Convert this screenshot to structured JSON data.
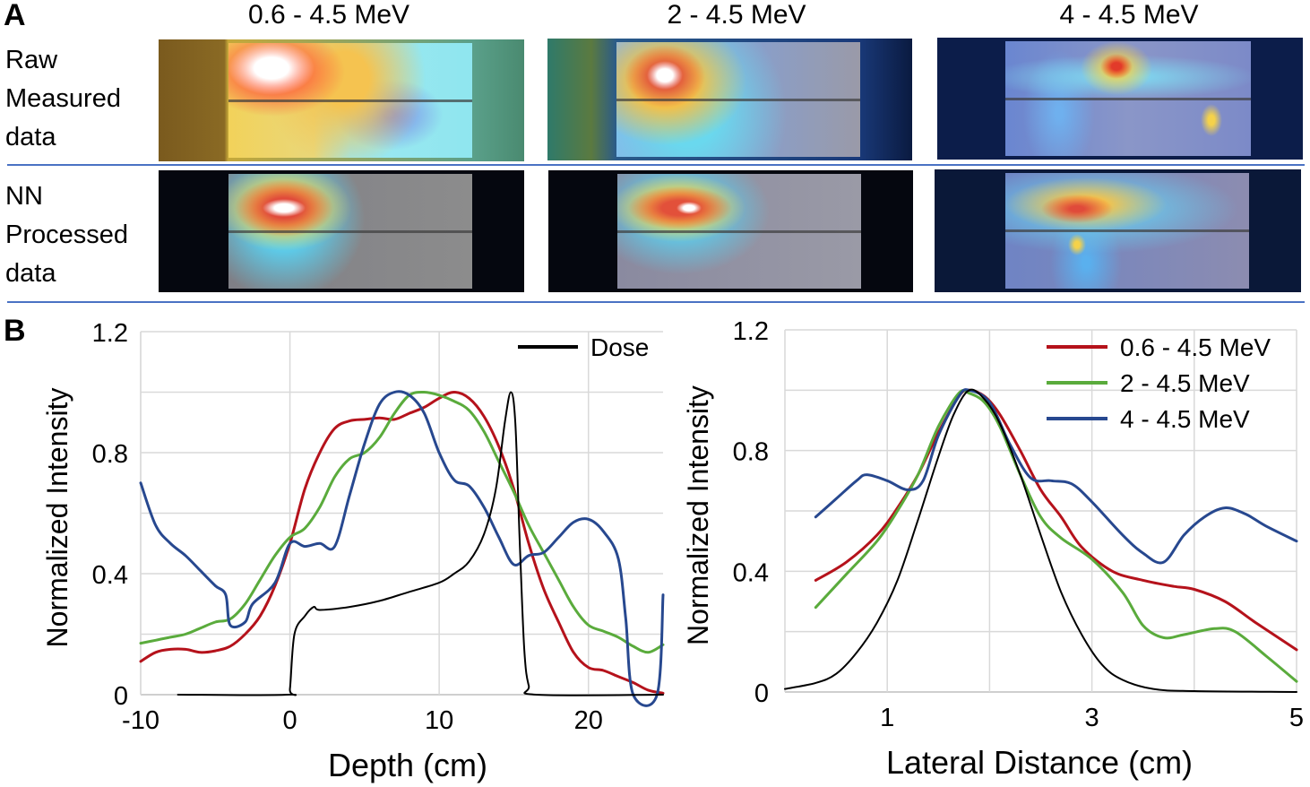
{
  "panel_a": {
    "letter": "A",
    "columns": [
      "0.6 - 4.5 MeV",
      "2 - 4.5 MeV",
      "4 - 4.5 MeV"
    ],
    "rows": [
      {
        "label_lines": [
          "Raw",
          "Measured",
          "data"
        ]
      },
      {
        "label_lines": [
          "NN",
          "Processed",
          "data"
        ]
      }
    ]
  },
  "panel_b": {
    "letter": "B"
  },
  "colors": {
    "red": "#b5121b",
    "green": "#5aab3c",
    "blue": "#27488f",
    "black": "#000000",
    "separator": "#4a72c4"
  },
  "chart_data": [
    {
      "type": "line",
      "xlabel": "Depth (cm)",
      "ylabel": "Normalized Intensity",
      "xlim": [
        -10,
        25
      ],
      "ylim": [
        0,
        1.2
      ],
      "xticks": [
        -10,
        0,
        10,
        20
      ],
      "yticks": [
        0,
        0.4,
        0.8,
        1.2
      ],
      "grid": true,
      "legend": {
        "placement": "top-right",
        "entries": [
          {
            "name": "Dose",
            "color": "#000000"
          }
        ]
      },
      "series": [
        {
          "name": "0.6 - 4.5 MeV",
          "color": "#b5121b",
          "x": [
            -10,
            -9,
            -8,
            -7,
            -6,
            -5,
            -4,
            -3,
            -2,
            -1,
            0,
            1,
            2,
            3,
            4,
            5,
            6,
            7,
            8,
            9,
            10,
            11,
            12,
            13,
            14,
            15,
            16,
            17,
            18,
            19,
            20,
            21,
            22,
            23,
            24,
            25
          ],
          "y": [
            0.11,
            0.14,
            0.15,
            0.15,
            0.14,
            0.145,
            0.16,
            0.2,
            0.26,
            0.36,
            0.5,
            0.68,
            0.8,
            0.88,
            0.905,
            0.91,
            0.915,
            0.91,
            0.93,
            0.95,
            0.98,
            1.0,
            0.98,
            0.92,
            0.82,
            0.68,
            0.5,
            0.35,
            0.24,
            0.14,
            0.09,
            0.08,
            0.06,
            0.04,
            0.015,
            0.005
          ]
        },
        {
          "name": "2 - 4.5 MeV",
          "color": "#5aab3c",
          "x": [
            -10,
            -9,
            -8,
            -7,
            -6,
            -5,
            -4,
            -3,
            -2,
            -1,
            0,
            1,
            2,
            3,
            4,
            5,
            6,
            7,
            8,
            9,
            10,
            11,
            12,
            13,
            14,
            15,
            16,
            17,
            18,
            19,
            20,
            21,
            22,
            23,
            24,
            25
          ],
          "y": [
            0.17,
            0.18,
            0.19,
            0.2,
            0.22,
            0.24,
            0.25,
            0.3,
            0.38,
            0.46,
            0.52,
            0.55,
            0.62,
            0.72,
            0.78,
            0.8,
            0.85,
            0.93,
            0.99,
            1.0,
            0.99,
            0.97,
            0.94,
            0.87,
            0.77,
            0.67,
            0.56,
            0.47,
            0.38,
            0.29,
            0.23,
            0.21,
            0.19,
            0.16,
            0.14,
            0.165
          ]
        },
        {
          "name": "4 - 4.5 MeV",
          "color": "#27488f",
          "x": [
            -10,
            -9,
            -8,
            -7,
            -6,
            -5,
            -4.3,
            -4,
            -3,
            -2.5,
            -1,
            0,
            1,
            2,
            3,
            4,
            5,
            6,
            7,
            8,
            9,
            10,
            11,
            12,
            13,
            14,
            15,
            16,
            17,
            18,
            19,
            20,
            21,
            22,
            22.5,
            23,
            24.6,
            25
          ],
          "y": [
            0.7,
            0.56,
            0.5,
            0.46,
            0.41,
            0.36,
            0.33,
            0.23,
            0.24,
            0.3,
            0.37,
            0.5,
            0.49,
            0.5,
            0.49,
            0.66,
            0.83,
            0.96,
            1.0,
            0.99,
            0.93,
            0.8,
            0.71,
            0.69,
            0.62,
            0.52,
            0.43,
            0.46,
            0.47,
            0.52,
            0.57,
            0.58,
            0.54,
            0.45,
            0.25,
            0,
            0,
            0.33
          ]
        },
        {
          "name": "Dose",
          "color": "#000000",
          "x": [
            -7.5,
            -0.2,
            0,
            0.3,
            1,
            1.6,
            2,
            4,
            6,
            8,
            10,
            11,
            12,
            13,
            13.8,
            14.4,
            14.8,
            15.1,
            15.4,
            15.7,
            16,
            16.5,
            25
          ],
          "y": [
            0,
            0,
            0.02,
            0.2,
            0.26,
            0.29,
            0.28,
            0.29,
            0.31,
            0.34,
            0.37,
            0.4,
            0.44,
            0.53,
            0.68,
            0.9,
            1.0,
            0.9,
            0.5,
            0.15,
            0.03,
            0,
            0
          ]
        }
      ]
    },
    {
      "type": "line",
      "xlabel": "Lateral Distance (cm)",
      "ylabel": "Normalized Intensity",
      "xlim": [
        0,
        5
      ],
      "ylim": [
        0,
        1.2
      ],
      "xticks": [
        1,
        3,
        5
      ],
      "yticks": [
        0,
        0.4,
        0.8,
        1.2
      ],
      "grid": true,
      "legend": {
        "placement": "top-right",
        "entries": [
          {
            "name": "0.6 - 4.5 MeV",
            "color": "#b5121b"
          },
          {
            "name": "2 - 4.5 MeV",
            "color": "#5aab3c"
          },
          {
            "name": "4 - 4.5 MeV",
            "color": "#27488f"
          }
        ]
      },
      "series": [
        {
          "name": "0.6 - 4.5 MeV",
          "color": "#b5121b",
          "x": [
            0.3,
            0.6,
            0.9,
            1.1,
            1.3,
            1.5,
            1.7,
            1.8,
            1.95,
            2.1,
            2.3,
            2.5,
            2.7,
            2.9,
            3.2,
            3.5,
            3.8,
            4.0,
            4.3,
            4.6,
            5.0
          ],
          "y": [
            0.37,
            0.43,
            0.52,
            0.61,
            0.72,
            0.86,
            0.98,
            1.0,
            0.98,
            0.92,
            0.8,
            0.67,
            0.58,
            0.48,
            0.4,
            0.37,
            0.35,
            0.34,
            0.3,
            0.23,
            0.14
          ]
        },
        {
          "name": "2 - 4.5 MeV",
          "color": "#5aab3c",
          "x": [
            0.3,
            0.6,
            0.9,
            1.1,
            1.3,
            1.5,
            1.7,
            1.8,
            1.95,
            2.1,
            2.3,
            2.5,
            2.7,
            3.0,
            3.3,
            3.5,
            3.7,
            3.9,
            4.2,
            4.4,
            4.7,
            5.0
          ],
          "y": [
            0.28,
            0.39,
            0.5,
            0.6,
            0.72,
            0.88,
            0.99,
            0.99,
            0.96,
            0.88,
            0.72,
            0.58,
            0.51,
            0.44,
            0.33,
            0.22,
            0.18,
            0.19,
            0.21,
            0.2,
            0.12,
            0.035
          ]
        },
        {
          "name": "4 - 4.5 MeV",
          "color": "#27488f",
          "x": [
            0.3,
            0.5,
            0.7,
            0.8,
            1.0,
            1.2,
            1.35,
            1.5,
            1.7,
            1.8,
            2.0,
            2.2,
            2.4,
            2.6,
            2.8,
            3.0,
            3.3,
            3.5,
            3.7,
            3.9,
            4.1,
            4.3,
            4.5,
            4.7,
            5.0
          ],
          "y": [
            0.58,
            0.64,
            0.7,
            0.72,
            0.7,
            0.67,
            0.7,
            0.85,
            0.98,
            1.0,
            0.96,
            0.82,
            0.71,
            0.7,
            0.69,
            0.63,
            0.52,
            0.46,
            0.43,
            0.52,
            0.58,
            0.61,
            0.59,
            0.55,
            0.5
          ]
        },
        {
          "name": "Dose",
          "color": "#000000",
          "x": [
            0,
            0.3,
            0.5,
            0.7,
            0.9,
            1.1,
            1.3,
            1.5,
            1.65,
            1.8,
            1.95,
            2.1,
            2.3,
            2.5,
            2.7,
            2.9,
            3.1,
            3.3,
            3.6,
            4.0,
            5.0
          ],
          "y": [
            0.01,
            0.03,
            0.06,
            0.13,
            0.23,
            0.37,
            0.57,
            0.78,
            0.92,
            1.0,
            0.97,
            0.89,
            0.72,
            0.52,
            0.33,
            0.19,
            0.09,
            0.04,
            0.01,
            0.003,
            0
          ]
        }
      ]
    }
  ]
}
